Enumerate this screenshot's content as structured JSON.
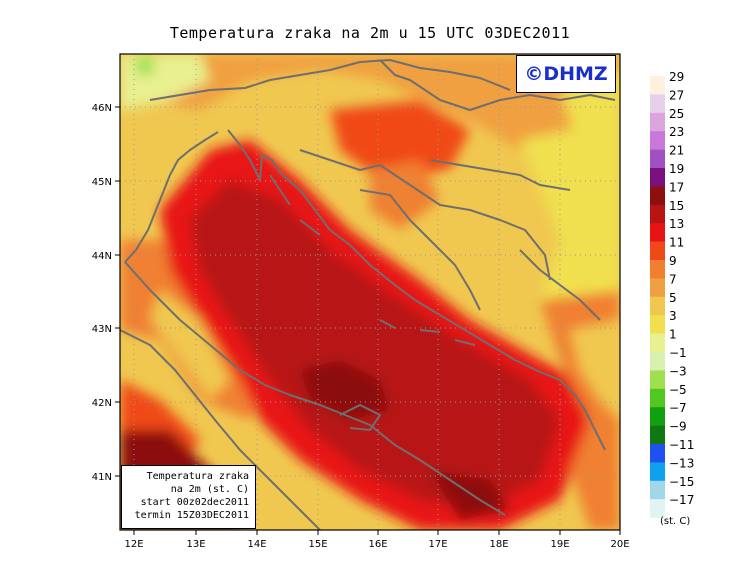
{
  "title": "Temperatura zraka na 2m u 15 UTC 03DEC2011",
  "logo": "©DHMZ",
  "legend": {
    "line1": "Temperatura zraka",
    "line2": "na 2m (st. C)",
    "line3": "start 00z02dec2011",
    "line4": "termin 15Z03DEC2011"
  },
  "x_ticks": [
    "12E",
    "13E",
    "14E",
    "15E",
    "16E",
    "17E",
    "18E",
    "19E",
    "20E"
  ],
  "y_ticks": [
    "46N",
    "45N",
    "44N",
    "43N",
    "42N",
    "41N"
  ],
  "colorbar": {
    "unit": "(st. C)",
    "levels": [
      "29",
      "27",
      "25",
      "23",
      "21",
      "19",
      "17",
      "15",
      "13",
      "11",
      "9",
      "7",
      "5",
      "3",
      "1",
      "−1",
      "−3",
      "−5",
      "−7",
      "−9",
      "−11",
      "−13",
      "−15",
      "−17"
    ],
    "colors": [
      "#fff0e0",
      "#e6d2e8",
      "#dca5de",
      "#c878d8",
      "#a050c0",
      "#7a1080",
      "#8c1010",
      "#b81414",
      "#e81414",
      "#f04818",
      "#f08030",
      "#f0a040",
      "#f0c850",
      "#f0e050",
      "#e8f090",
      "#d8f0b0",
      "#a0e050",
      "#50c820",
      "#10a010",
      "#107810",
      "#2050f0",
      "#10a0f0",
      "#a0d8e8",
      "#e0f4f4"
    ]
  },
  "icons": {
    "logo": "dhmz-logo"
  }
}
